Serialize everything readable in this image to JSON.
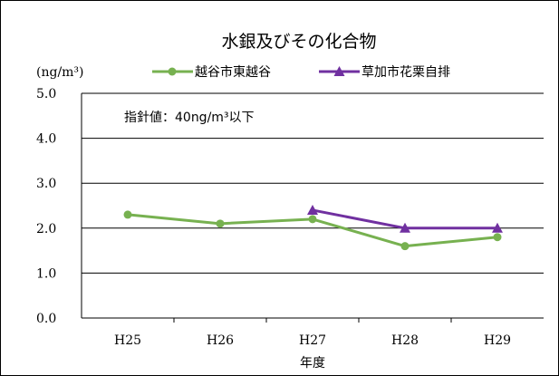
{
  "chart_data": {
    "type": "line",
    "title": "水銀及びその化合物",
    "ylabel": "(ng/m³)",
    "xlabel": "年度",
    "categories": [
      "H25",
      "H26",
      "H27",
      "H28",
      "H29"
    ],
    "ylim": [
      0,
      5
    ],
    "yticks": [
      0,
      1,
      2,
      3,
      4,
      5
    ],
    "ytick_labels": [
      "0.0",
      "1.0",
      "2.0",
      "3.0",
      "4.0",
      "5.0"
    ],
    "grid": true,
    "legend_position": "top",
    "annotation": "指針値：40ng/m³以下",
    "series": [
      {
        "name": "越谷市東越谷",
        "values": [
          2.3,
          2.1,
          2.2,
          1.6,
          1.8
        ],
        "color": "#77b150",
        "marker": "circle"
      },
      {
        "name": "草加市花栗自排",
        "values": [
          null,
          null,
          2.4,
          2.0,
          2.0
        ],
        "color": "#7030a0",
        "marker": "triangle"
      }
    ]
  }
}
